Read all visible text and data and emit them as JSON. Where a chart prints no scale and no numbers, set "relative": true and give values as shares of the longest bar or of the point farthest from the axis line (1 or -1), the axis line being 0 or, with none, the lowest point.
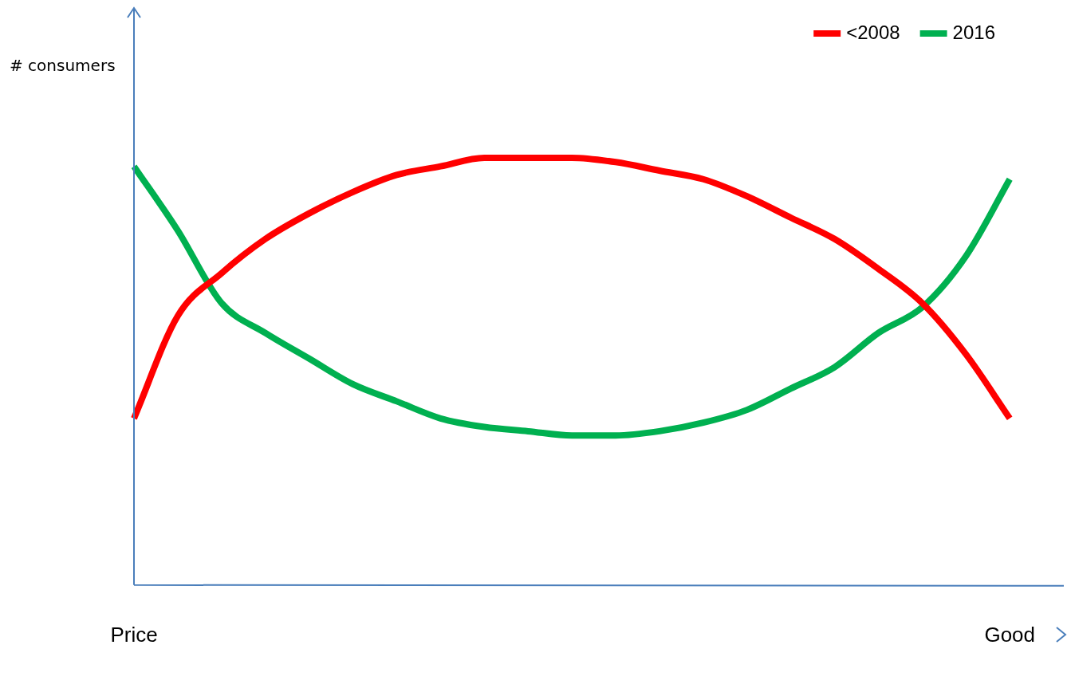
{
  "chart_data": {
    "type": "line",
    "relative": true,
    "annotations": [
      "# consumers"
    ],
    "categories": [
      "Price",
      null,
      null,
      null,
      null,
      null,
      null,
      null,
      null,
      null,
      null,
      null,
      null,
      null,
      null,
      null,
      null,
      null,
      null,
      null,
      "Good"
    ],
    "series": [
      {
        "name": "<2008",
        "color": "#ff0000",
        "values": [
          0.39,
          0.63,
          0.73,
          0.81,
          0.87,
          0.92,
          0.96,
          0.98,
          1.0,
          1.0,
          1.0,
          0.99,
          0.97,
          0.95,
          0.91,
          0.86,
          0.81,
          0.74,
          0.66,
          0.54,
          0.39
        ]
      },
      {
        "name": "2016",
        "color": "#00b050",
        "values": [
          0.98,
          0.83,
          0.66,
          0.59,
          0.53,
          0.47,
          0.43,
          0.39,
          0.37,
          0.36,
          0.35,
          0.35,
          0.36,
          0.38,
          0.41,
          0.46,
          0.51,
          0.59,
          0.65,
          0.77,
          0.95
        ]
      }
    ],
    "legend": "top right",
    "grid": false,
    "marker": "none",
    "line_style": "solid"
  }
}
